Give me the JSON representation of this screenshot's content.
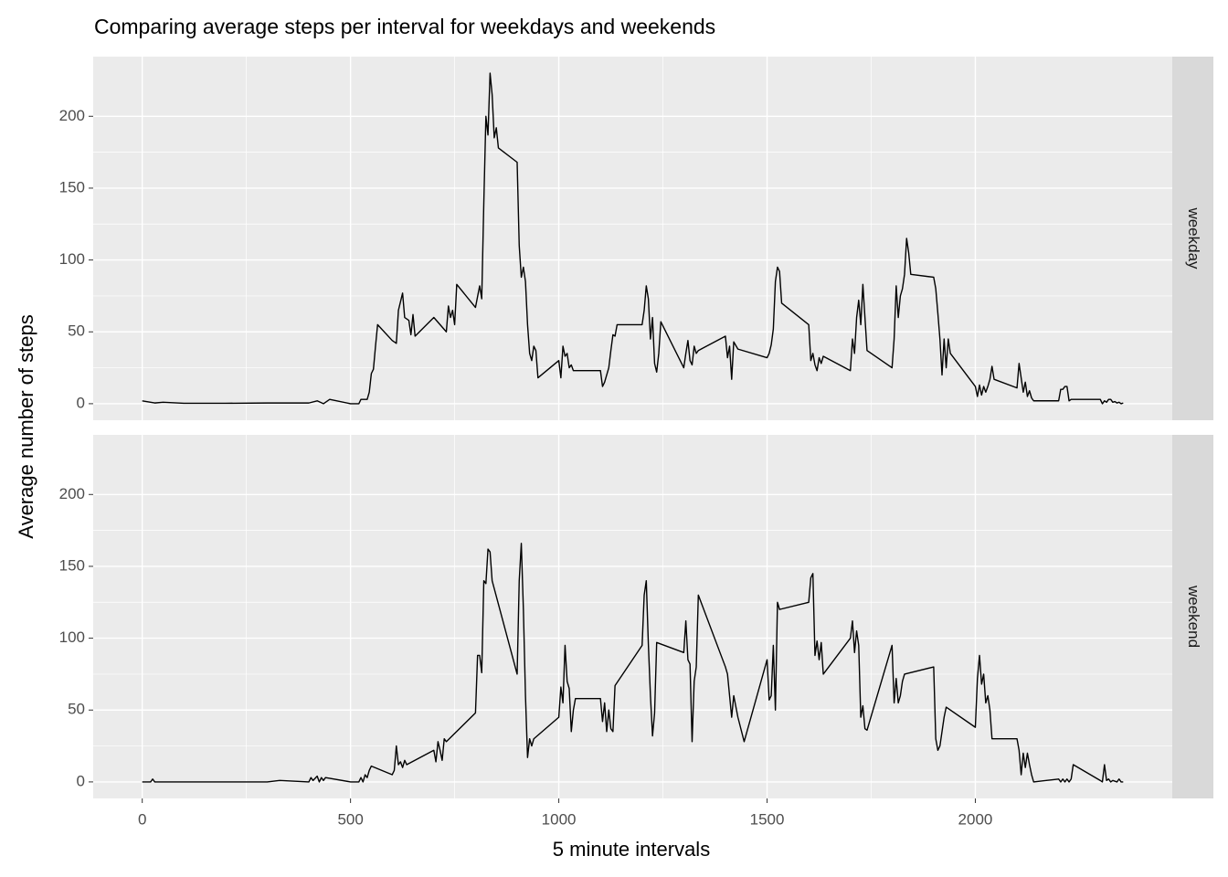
{
  "chart_data": {
    "type": "line",
    "title": "Comparing average steps per interval for weekdays and weekends",
    "xlabel": "5 minute intervals",
    "ylabel": "Average number of steps",
    "xlim": [
      -117.75,
      2472.75
    ],
    "xticks": [
      0,
      500,
      1000,
      1500,
      2000
    ],
    "ylim": [
      -11.5,
      241.5
    ],
    "yticks": [
      0,
      50,
      100,
      150,
      200
    ],
    "grid": true,
    "minor_grid": true,
    "series": [
      {
        "name": "weekday",
        "color": "#000000",
        "x": [
          0,
          20,
          30,
          50,
          100,
          200,
          300,
          400,
          420,
          435,
          450,
          500,
          520,
          525,
          540,
          545,
          550,
          555,
          560,
          565,
          600,
          610,
          615,
          625,
          630,
          640,
          645,
          650,
          655,
          700,
          730,
          735,
          740,
          745,
          750,
          755,
          800,
          810,
          815,
          820,
          825,
          830,
          835,
          840,
          845,
          850,
          855,
          900,
          905,
          910,
          915,
          920,
          925,
          930,
          935,
          940,
          945,
          950,
          1000,
          1005,
          1010,
          1015,
          1020,
          1025,
          1030,
          1035,
          1100,
          1105,
          1110,
          1115,
          1120,
          1125,
          1130,
          1135,
          1140,
          1200,
          1205,
          1210,
          1215,
          1220,
          1225,
          1230,
          1235,
          1240,
          1245,
          1300,
          1305,
          1310,
          1315,
          1320,
          1325,
          1330,
          1335,
          1400,
          1405,
          1410,
          1415,
          1420,
          1430,
          1500,
          1505,
          1510,
          1515,
          1520,
          1525,
          1530,
          1535,
          1600,
          1605,
          1610,
          1615,
          1620,
          1625,
          1630,
          1635,
          1700,
          1705,
          1710,
          1715,
          1720,
          1725,
          1730,
          1735,
          1740,
          1800,
          1805,
          1810,
          1815,
          1820,
          1825,
          1830,
          1835,
          1840,
          1845,
          1900,
          1905,
          1910,
          1915,
          1920,
          1925,
          1930,
          1935,
          1940,
          2000,
          2005,
          2010,
          2015,
          2020,
          2025,
          2030,
          2035,
          2040,
          2045,
          2100,
          2105,
          2110,
          2115,
          2120,
          2125,
          2130,
          2135,
          2140,
          2200,
          2205,
          2210,
          2215,
          2220,
          2225,
          2230,
          2300,
          2305,
          2310,
          2315,
          2320,
          2325,
          2330,
          2335,
          2340,
          2345,
          2350,
          2355
        ],
        "values": [
          2,
          1,
          0.5,
          1,
          0.3,
          0.3,
          0.5,
          0.5,
          2,
          0,
          3,
          0,
          0,
          3,
          3,
          8,
          21,
          24,
          40,
          55,
          44,
          42,
          65,
          77,
          60,
          58,
          48,
          62,
          47,
          60,
          50,
          68,
          60,
          65,
          55,
          83,
          67,
          82,
          73,
          140,
          200,
          187,
          230,
          215,
          185,
          192,
          178,
          168,
          110,
          88,
          95,
          85,
          55,
          35,
          30,
          40,
          37,
          18,
          30,
          18,
          40,
          33,
          35,
          25,
          27,
          23,
          23,
          12,
          15,
          20,
          25,
          37,
          48,
          47,
          55,
          55,
          65,
          82,
          73,
          45,
          60,
          28,
          22,
          35,
          57,
          25,
          35,
          44,
          30,
          27,
          40,
          35,
          37,
          47,
          32,
          40,
          17,
          43,
          38,
          32,
          35,
          41,
          52,
          85,
          95,
          92,
          70,
          55,
          30,
          35,
          27,
          23,
          32,
          28,
          33,
          23,
          45,
          35,
          60,
          72,
          55,
          83,
          60,
          37,
          25,
          45,
          82,
          60,
          75,
          80,
          90,
          115,
          105,
          90,
          88,
          80,
          63,
          45,
          20,
          45,
          25,
          45,
          35,
          12,
          5,
          13,
          6,
          12,
          8,
          12,
          17,
          26,
          17,
          11,
          28,
          18,
          8,
          15,
          5,
          9,
          4,
          2,
          2,
          10,
          10,
          12,
          12,
          2,
          3,
          3,
          0,
          2,
          1,
          3,
          3,
          1,
          1.5,
          0.5,
          1,
          0,
          0.5
        ]
      },
      {
        "name": "weekend",
        "color": "#000000",
        "x": [
          0,
          20,
          25,
          30,
          100,
          200,
          300,
          330,
          400,
          405,
          410,
          420,
          425,
          430,
          435,
          440,
          500,
          520,
          525,
          530,
          535,
          540,
          545,
          550,
          600,
          605,
          610,
          615,
          620,
          625,
          630,
          635,
          700,
          705,
          710,
          715,
          720,
          725,
          730,
          800,
          805,
          810,
          815,
          820,
          825,
          830,
          835,
          840,
          900,
          905,
          910,
          915,
          920,
          925,
          930,
          935,
          940,
          1000,
          1005,
          1010,
          1015,
          1020,
          1025,
          1030,
          1035,
          1040,
          1100,
          1105,
          1110,
          1115,
          1120,
          1125,
          1130,
          1135,
          1200,
          1205,
          1210,
          1215,
          1220,
          1225,
          1230,
          1235,
          1300,
          1305,
          1310,
          1315,
          1320,
          1325,
          1330,
          1335,
          1400,
          1405,
          1410,
          1415,
          1420,
          1430,
          1445,
          1500,
          1505,
          1510,
          1515,
          1520,
          1525,
          1530,
          1600,
          1605,
          1610,
          1615,
          1620,
          1625,
          1630,
          1635,
          1700,
          1705,
          1710,
          1715,
          1720,
          1725,
          1730,
          1735,
          1740,
          1800,
          1805,
          1810,
          1815,
          1820,
          1825,
          1830,
          1900,
          1905,
          1910,
          1915,
          1920,
          1925,
          1930,
          2000,
          2005,
          2010,
          2015,
          2020,
          2025,
          2030,
          2035,
          2040,
          2100,
          2105,
          2110,
          2115,
          2120,
          2125,
          2130,
          2135,
          2140,
          2200,
          2205,
          2210,
          2215,
          2220,
          2225,
          2230,
          2235,
          2300,
          2305,
          2310,
          2315,
          2320,
          2325,
          2330,
          2340,
          2345,
          2350,
          2355
        ],
        "values": [
          0,
          0,
          2,
          0,
          0,
          0,
          0,
          1,
          0,
          3,
          1,
          4,
          0,
          3,
          1,
          3,
          0,
          0,
          3,
          0,
          5,
          3,
          8,
          11,
          5,
          8,
          25,
          12,
          14,
          10,
          15,
          12,
          22,
          14,
          28,
          22,
          15,
          30,
          28,
          48,
          88,
          88,
          76,
          140,
          138,
          162,
          160,
          140,
          75,
          140,
          166,
          120,
          60,
          17,
          30,
          25,
          30,
          45,
          66,
          55,
          95,
          70,
          65,
          35,
          50,
          58,
          58,
          42,
          55,
          35,
          50,
          37,
          35,
          67,
          95,
          130,
          140,
          96,
          60,
          32,
          48,
          97,
          90,
          112,
          85,
          82,
          28,
          70,
          80,
          130,
          80,
          75,
          60,
          45,
          60,
          45,
          28,
          85,
          57,
          60,
          95,
          50,
          125,
          120,
          125,
          142,
          145,
          88,
          98,
          85,
          97,
          75,
          100,
          112,
          90,
          105,
          95,
          45,
          53,
          37,
          36,
          95,
          55,
          72,
          55,
          60,
          70,
          75,
          80,
          30,
          22,
          25,
          35,
          45,
          52,
          38,
          72,
          88,
          68,
          75,
          55,
          60,
          50,
          30,
          30,
          22,
          5,
          20,
          10,
          20,
          12,
          5,
          0,
          2,
          0,
          2,
          0,
          2,
          0,
          2,
          12,
          1,
          0,
          12,
          1,
          2,
          0,
          1,
          0,
          2,
          0,
          0
        ]
      }
    ]
  }
}
